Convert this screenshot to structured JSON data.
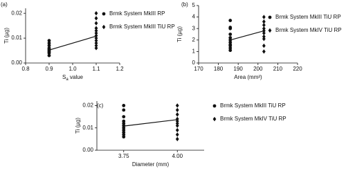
{
  "chart_data": [
    {
      "type": "scatter",
      "panel": "(a)",
      "y_label": "Ti (µg)",
      "x_label": {
        "main": "S",
        "sub": "a",
        "rest": " value"
      },
      "xlim": [
        0.8,
        1.2
      ],
      "xticks": [
        0.8,
        0.9,
        {
          "value": 1,
          "label": "1.0"
        },
        1.1,
        1.2
      ],
      "ylim": [
        0,
        0.022
      ],
      "yticks": [
        {
          "value": 0,
          "label": "0.00"
        },
        0.01,
        0.02
      ],
      "series": [
        {
          "name": "Brmk System MkIII RP",
          "marker": "circle",
          "color": "#111111",
          "x": [
            0.9,
            0.9,
            0.9,
            0.9,
            0.9,
            0.9,
            0.9,
            0.9,
            0.9
          ],
          "values": [
            0.003,
            0.004,
            0.0045,
            0.005,
            0.0055,
            0.006,
            0.007,
            0.008,
            0.009
          ]
        },
        {
          "name": "Brmk System MkIII TiU RP",
          "marker": "diamond",
          "color": "#111111",
          "x": [
            1.1,
            1.1,
            1.1,
            1.1,
            1.1,
            1.1,
            1.1,
            1.1,
            1.1,
            1.1,
            1.1,
            1.1
          ],
          "values": [
            0.006,
            0.007,
            0.008,
            0.009,
            0.01,
            0.011,
            0.012,
            0.013,
            0.014,
            0.016,
            0.018,
            0.02
          ]
        }
      ],
      "trend": {
        "x": [
          0.9,
          1.1
        ],
        "values": [
          0.0052,
          0.0108
        ]
      }
    },
    {
      "type": "scatter",
      "panel": "(b)",
      "y_label": "Ti (µg)",
      "x_label": "Area (mm²)",
      "xlim": [
        170,
        220
      ],
      "xticks": [
        170,
        180,
        190,
        200,
        210,
        220
      ],
      "ylim": [
        0,
        5
      ],
      "yticks": [
        0,
        1,
        2,
        3,
        4,
        5
      ],
      "series": [
        {
          "name": "Brmk System MkIII TiU RP",
          "marker": "circle",
          "color": "#111111",
          "x": [
            186,
            186,
            186,
            186,
            186,
            186,
            186,
            186,
            186,
            186,
            186
          ],
          "values": [
            1.1,
            1.3,
            1.5,
            1.6,
            1.8,
            2.0,
            2.2,
            2.5,
            3.0,
            3.1,
            3.7
          ]
        },
        {
          "name": "Brmk System MkIV TiU RP",
          "marker": "diamond",
          "color": "#111111",
          "x": [
            203,
            203,
            203,
            203,
            203,
            203,
            203,
            203,
            203,
            203
          ],
          "values": [
            1.0,
            1.5,
            2.1,
            2.3,
            2.6,
            2.8,
            3.0,
            3.3,
            3.6,
            4.0
          ]
        }
      ],
      "trend": {
        "x": [
          186,
          203
        ],
        "values": [
          2.0,
          2.8
        ]
      }
    },
    {
      "type": "scatter",
      "panel": "(c)",
      "y_label": "Ti (µg)",
      "x_label": "Diameter (mm)",
      "xlim": [
        3.625,
        4.125
      ],
      "xticks": [
        3.75,
        {
          "value": 4,
          "label": "4.00"
        }
      ],
      "ylim": [
        0,
        0.022
      ],
      "yticks": [
        {
          "value": 0,
          "label": "0.00"
        },
        0.01,
        0.02
      ],
      "series": [
        {
          "name": "Brmk System MkIII TiU RP",
          "marker": "circle",
          "color": "#111111",
          "x": [
            3.75,
            3.75,
            3.75,
            3.75,
            3.75,
            3.75,
            3.75,
            3.75,
            3.75,
            3.75,
            3.75
          ],
          "values": [
            0.006,
            0.007,
            0.008,
            0.009,
            0.01,
            0.011,
            0.012,
            0.013,
            0.015,
            0.018,
            0.02
          ]
        },
        {
          "name": "Brmk System MkIV TiU RP",
          "marker": "diamond",
          "color": "#111111",
          "x": [
            4,
            4,
            4,
            4,
            4,
            4,
            4,
            4,
            4,
            4
          ],
          "values": [
            0.005,
            0.007,
            0.009,
            0.011,
            0.012,
            0.013,
            0.014,
            0.016,
            0.018,
            0.02
          ]
        }
      ],
      "trend": {
        "x": [
          3.75,
          4
        ],
        "values": [
          0.0108,
          0.0137
        ]
      }
    }
  ]
}
